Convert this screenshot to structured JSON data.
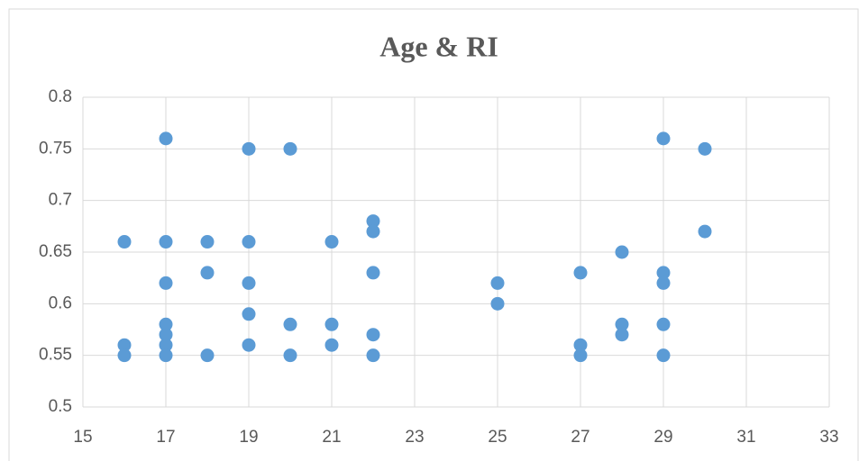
{
  "chart_data": {
    "type": "scatter",
    "title": "Age & RI",
    "x": [
      16,
      16,
      16,
      17,
      17,
      17,
      17,
      17,
      17,
      17,
      18,
      18,
      18,
      19,
      19,
      19,
      19,
      19,
      20,
      20,
      20,
      21,
      21,
      21,
      22,
      22,
      22,
      22,
      22,
      25,
      25,
      27,
      27,
      27,
      28,
      28,
      28,
      29,
      29,
      29,
      29,
      29,
      30,
      30
    ],
    "values": [
      0.66,
      0.56,
      0.55,
      0.76,
      0.66,
      0.62,
      0.58,
      0.57,
      0.56,
      0.55,
      0.66,
      0.63,
      0.55,
      0.75,
      0.66,
      0.62,
      0.59,
      0.56,
      0.75,
      0.58,
      0.55,
      0.66,
      0.58,
      0.56,
      0.68,
      0.67,
      0.63,
      0.57,
      0.55,
      0.62,
      0.6,
      0.63,
      0.56,
      0.55,
      0.65,
      0.58,
      0.57,
      0.76,
      0.63,
      0.62,
      0.58,
      0.55,
      0.75,
      0.67
    ],
    "color": "#5b9bd5",
    "xlim": [
      15,
      33
    ],
    "xticks": [
      15,
      17,
      19,
      21,
      23,
      25,
      27,
      29,
      31,
      33
    ],
    "ylim": [
      0.5,
      0.8
    ],
    "yticks": [
      0.5,
      0.55,
      0.6,
      0.65,
      0.7,
      0.75,
      0.8
    ],
    "grid": true
  }
}
